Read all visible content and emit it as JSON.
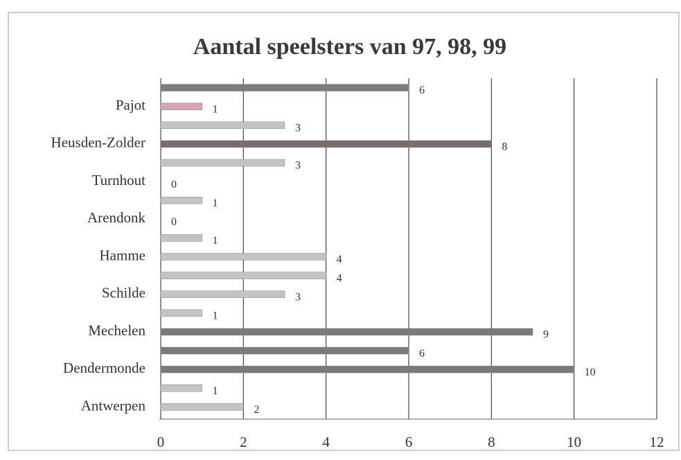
{
  "chart_data": {
    "type": "barh",
    "title": "Aantal speelsters van 97, 98, 99",
    "categories": [
      "Antwerpen",
      null,
      "Dendermonde",
      null,
      "Mechelen",
      null,
      "Schilde",
      null,
      "Hamme",
      null,
      "Arendonk",
      null,
      "Turnhout",
      null,
      "Heusden-Zolder",
      null,
      "Pajot",
      null
    ],
    "values": [
      2,
      1,
      10,
      6,
      9,
      1,
      3,
      4,
      4,
      1,
      0,
      1,
      0,
      3,
      8,
      3,
      1,
      6
    ],
    "colors": [
      "#c4c4c4",
      "#c4c4c4",
      "#7a7a7a",
      "#7a7a7a",
      "#7a7a7a",
      "#c4c4c4",
      "#c4c4c4",
      "#c4c4c4",
      "#c4c4c4",
      "#c4c4c4",
      "#c4c4c4",
      "#c4c4c4",
      "#c4c4c4",
      "#c4c4c4",
      "#7a6c6c",
      "#c4c4c4",
      "#d6a6ae",
      "#7a8078"
    ],
    "xlim": [
      0,
      12
    ],
    "xticks": [
      0,
      2,
      4,
      6,
      8,
      10,
      12
    ],
    "grid": true
  }
}
